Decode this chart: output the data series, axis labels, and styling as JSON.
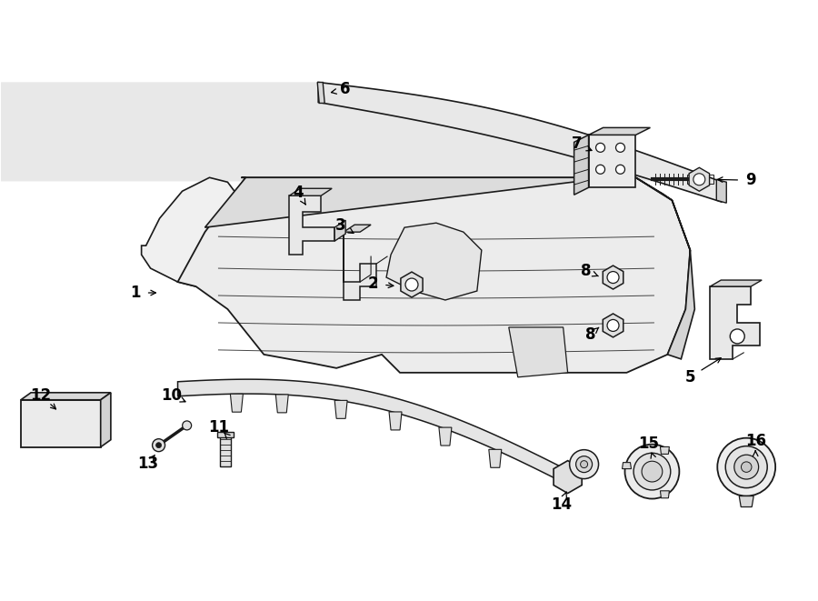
{
  "bg_color": "#ffffff",
  "line_color": "#1a1a1a",
  "label_color": "#000000",
  "figsize": [
    9.0,
    6.61
  ],
  "dpi": 100
}
